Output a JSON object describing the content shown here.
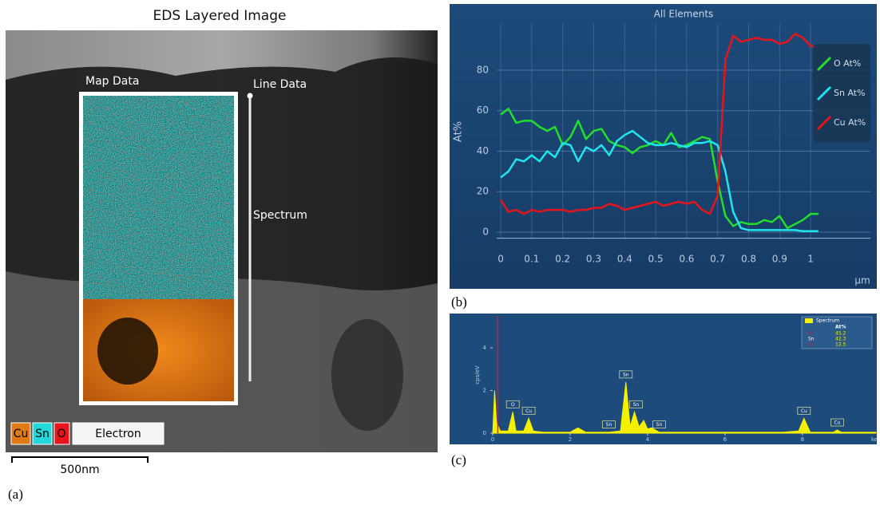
{
  "panel_a": {
    "title": "EDS Layered Image",
    "map_label": "Map Data",
    "line_label": "Line Data",
    "spectrum_label": "Spectrum",
    "legend": [
      "Cu",
      "Sn",
      "O",
      "Electron"
    ],
    "scale_bar": "500nm",
    "caption": "(a)"
  },
  "chart_data": [
    {
      "type": "line",
      "title": "All Elements",
      "y_label": "At%",
      "x_label": "µm",
      "caption": "(b)",
      "x": [
        0,
        0.025,
        0.05,
        0.075,
        0.1,
        0.125,
        0.15,
        0.175,
        0.2,
        0.225,
        0.25,
        0.275,
        0.3,
        0.325,
        0.35,
        0.375,
        0.4,
        0.425,
        0.45,
        0.475,
        0.5,
        0.525,
        0.55,
        0.575,
        0.6,
        0.625,
        0.65,
        0.675,
        0.7,
        0.725,
        0.75,
        0.775,
        0.8,
        0.825,
        0.85,
        0.875,
        0.9,
        0.925,
        0.95,
        0.975,
        1.0,
        1.025
      ],
      "series": [
        {
          "name": "O At%",
          "color": "#22e02a",
          "values": [
            58,
            61,
            54,
            55,
            55,
            52,
            50,
            52,
            43,
            47,
            55,
            46,
            50,
            51,
            45,
            43,
            42,
            39,
            42,
            43,
            45,
            43,
            49,
            42,
            43,
            45,
            47,
            46,
            25,
            8,
            3,
            5,
            4,
            4,
            6,
            5,
            8,
            2,
            4,
            6,
            9,
            9
          ]
        },
        {
          "name": "Sn At%",
          "color": "#1ee6f0",
          "values": [
            27,
            30,
            36,
            35,
            38,
            35,
            40,
            37,
            44,
            43,
            35,
            42,
            40,
            43,
            38,
            45,
            48,
            50,
            47,
            44,
            43,
            43,
            44,
            43,
            42,
            44,
            44,
            45,
            43,
            30,
            10,
            2,
            1,
            1,
            1,
            1,
            1,
            1,
            1,
            0.5,
            0.5,
            0.5
          ]
        },
        {
          "name": "Cu At%",
          "color": "#e8141c",
          "values": [
            16,
            10,
            11,
            9,
            11,
            10,
            11,
            11,
            11,
            10,
            11,
            11,
            12,
            12,
            14,
            13,
            11,
            12,
            13,
            14,
            15,
            13,
            14,
            15,
            14,
            15,
            11,
            9,
            18,
            85,
            97,
            94,
            95,
            96,
            95,
            95,
            93,
            94,
            98,
            96,
            92,
            91
          ]
        }
      ],
      "xlim": [
        -0.013,
        1.193
      ],
      "ylim": [
        -3,
        103
      ],
      "xticks": [
        0,
        0.1,
        0.2,
        0.3,
        0.4,
        0.5,
        0.6,
        0.7,
        0.8,
        0.9,
        1
      ],
      "yticks": [
        0,
        20,
        40,
        60,
        80
      ],
      "grid": true,
      "legend": "upper right"
    },
    {
      "type": "area",
      "y_label": "cps/eV",
      "x_label": "ke",
      "caption": "(c)",
      "color": "#f5f000",
      "x": [
        0,
        0.05,
        0.1,
        0.2,
        0.4,
        0.52,
        0.6,
        0.8,
        0.93,
        1.05,
        1.3,
        2.0,
        2.2,
        2.4,
        3.0,
        3.3,
        3.44,
        3.55,
        3.66,
        3.78,
        3.9,
        4.0,
        4.1,
        4.3,
        5.0,
        6.0,
        7.5,
        7.9,
        8.04,
        8.2,
        8.8,
        8.9,
        9.0,
        9.9
      ],
      "values": [
        0,
        2.0,
        0.5,
        0.1,
        0.1,
        1.0,
        0.1,
        0.1,
        0.7,
        0.1,
        0.05,
        0.05,
        0.25,
        0.05,
        0.05,
        0.1,
        2.4,
        0.3,
        1.0,
        0.3,
        0.6,
        0.2,
        0.25,
        0.05,
        0.05,
        0.05,
        0.05,
        0.1,
        0.7,
        0.05,
        0.05,
        0.15,
        0.05,
        0.05
      ],
      "xlim": [
        0,
        9.9
      ],
      "ylim": [
        0,
        5.5
      ],
      "xticks": [
        0,
        2,
        4,
        6,
        8
      ],
      "yticks": [
        0,
        2,
        4
      ],
      "grid": false,
      "peak_labels": [
        {
          "text": "O",
          "x": 0.52
        },
        {
          "text": "Cu",
          "x": 0.93
        },
        {
          "text": "Sn",
          "x": 3.0
        },
        {
          "text": "Sn",
          "x": 3.44
        },
        {
          "text": "Sn",
          "x": 3.7
        },
        {
          "text": "Sn",
          "x": 4.3
        },
        {
          "text": "Cu",
          "x": 8.04
        },
        {
          "text": "Cu",
          "x": 8.9
        }
      ],
      "legend_table": {
        "name": "Spectrum",
        "header": "At%",
        "rows": [
          {
            "element": "O",
            "value": 45.2,
            "color": "#e8141c"
          },
          {
            "element": "Sn",
            "value": 42.3,
            "color": "#ffffff"
          },
          {
            "element": "Cu",
            "value": 12.5,
            "color": "#e8141c"
          }
        ]
      }
    }
  ]
}
